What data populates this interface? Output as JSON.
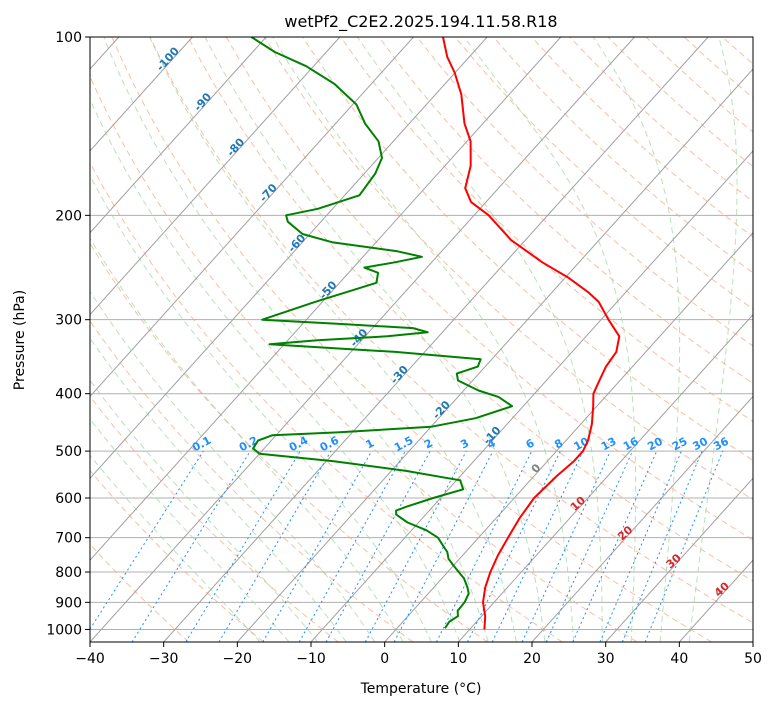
{
  "colors": {
    "temperature": "#ff0000",
    "dewpoint": "#008000",
    "isotherm": "#a0a0a0",
    "dry_adiabat": "#f4a582",
    "moist_adiabat": "#9fd39f",
    "mixing_ratio": "#1e90ff",
    "isotherm_label": "#1f77b4",
    "theta_label": "#d62728",
    "zero_label": "#808080"
  },
  "chart_data": {
    "type": "line",
    "title": "wetPf2_C2E2.2025.194.11.58.R18",
    "xlabel": "Temperature (°C)",
    "ylabel": "Pressure (hPa)",
    "xlim": [
      -40,
      50
    ],
    "ylim": [
      1050,
      100
    ],
    "y_scale": "log",
    "grid": true,
    "x_ticks": [
      -40,
      -30,
      -20,
      -10,
      0,
      10,
      20,
      30,
      40,
      50
    ],
    "x_tick_labels": [
      "−40",
      "−30",
      "−20",
      "−10",
      "0",
      "10",
      "20",
      "30",
      "40",
      "50"
    ],
    "y_ticks": [
      1000,
      900,
      800,
      700,
      600,
      500,
      400,
      300,
      200,
      100
    ],
    "y_tick_labels": [
      "1000",
      "900",
      "800",
      "700",
      "600",
      "500",
      "400",
      "300",
      "200",
      "100"
    ],
    "series": [
      {
        "role": "temperature",
        "color": "#ff0000",
        "points": [
          [
            1000,
            12
          ],
          [
            950,
            10.5
          ],
          [
            900,
            8.5
          ],
          [
            850,
            7
          ],
          [
            800,
            5.8
          ],
          [
            750,
            4.8
          ],
          [
            700,
            4
          ],
          [
            650,
            3.2
          ],
          [
            600,
            2.7
          ],
          [
            550,
            3.1
          ],
          [
            520,
            3.6
          ],
          [
            500,
            3.6
          ],
          [
            480,
            3
          ],
          [
            450,
            1.5
          ],
          [
            420,
            -0.5
          ],
          [
            400,
            -2
          ],
          [
            380,
            -2.8
          ],
          [
            360,
            -3.6
          ],
          [
            340,
            -4
          ],
          [
            320,
            -5.5
          ],
          [
            300,
            -9
          ],
          [
            280,
            -12.5
          ],
          [
            270,
            -15
          ],
          [
            255,
            -19.5
          ],
          [
            240,
            -25
          ],
          [
            220,
            -32
          ],
          [
            200,
            -38
          ],
          [
            190,
            -42
          ],
          [
            180,
            -44.5
          ],
          [
            165,
            -46.5
          ],
          [
            150,
            -49.5
          ],
          [
            140,
            -52.5
          ],
          [
            125,
            -56.5
          ],
          [
            115,
            -60
          ],
          [
            108,
            -63
          ],
          [
            100,
            -66
          ]
        ]
      },
      {
        "role": "dewpoint",
        "color": "#008000",
        "points": [
          [
            995,
            6.5
          ],
          [
            970,
            6.3
          ],
          [
            950,
            6.8
          ],
          [
            930,
            6.1
          ],
          [
            900,
            6
          ],
          [
            870,
            5.5
          ],
          [
            850,
            4.6
          ],
          [
            820,
            3
          ],
          [
            800,
            1.5
          ],
          [
            780,
            0
          ],
          [
            760,
            -1.5
          ],
          [
            740,
            -2.5
          ],
          [
            720,
            -4
          ],
          [
            700,
            -5.5
          ],
          [
            680,
            -8
          ],
          [
            660,
            -11.5
          ],
          [
            640,
            -14
          ],
          [
            630,
            -14.5
          ],
          [
            620,
            -13.5
          ],
          [
            600,
            -11
          ],
          [
            580,
            -8
          ],
          [
            560,
            -9.5
          ],
          [
            540,
            -18
          ],
          [
            520,
            -29
          ],
          [
            505,
            -40
          ],
          [
            495,
            -41.5
          ],
          [
            480,
            -41.8
          ],
          [
            470,
            -40.5
          ],
          [
            465,
            -32
          ],
          [
            455,
            -20
          ],
          [
            440,
            -15
          ],
          [
            420,
            -11.5
          ],
          [
            405,
            -14.5
          ],
          [
            395,
            -18
          ],
          [
            380,
            -22
          ],
          [
            370,
            -23
          ],
          [
            360,
            -21
          ],
          [
            350,
            -21.5
          ],
          [
            340,
            -34
          ],
          [
            335,
            -43
          ],
          [
            330,
            -52
          ],
          [
            325,
            -46
          ],
          [
            320,
            -37
          ],
          [
            315,
            -32
          ],
          [
            310,
            -34.5
          ],
          [
            305,
            -45
          ],
          [
            300,
            -56
          ],
          [
            280,
            -51
          ],
          [
            260,
            -45
          ],
          [
            250,
            -46
          ],
          [
            245,
            -48.5
          ],
          [
            240,
            -45
          ],
          [
            235,
            -42
          ],
          [
            230,
            -46
          ],
          [
            222,
            -56
          ],
          [
            215,
            -61
          ],
          [
            205,
            -64.5
          ],
          [
            200,
            -65.5
          ],
          [
            195,
            -62
          ],
          [
            185,
            -58
          ],
          [
            170,
            -58.5
          ],
          [
            160,
            -59.5
          ],
          [
            150,
            -62
          ],
          [
            140,
            -66
          ],
          [
            130,
            -69.5
          ],
          [
            120,
            -75
          ],
          [
            112,
            -81
          ],
          [
            106,
            -87
          ],
          [
            100,
            -92
          ]
        ]
      }
    ],
    "mixing_ratio_labels": [
      "0.1",
      "0.2",
      "0.4",
      "0.6",
      "1",
      "1.5",
      "2",
      "3",
      "4",
      "6",
      "8",
      "10",
      "13",
      "16",
      "20",
      "25",
      "30",
      "36"
    ],
    "isotherm_labels": [
      "-100",
      "-90",
      "-80",
      "-70",
      "-60",
      "-50",
      "-40",
      "-30",
      "-20",
      "-10",
      "0"
    ],
    "dry_adiabat_labels": [
      "10",
      "20",
      "30",
      "40"
    ]
  }
}
